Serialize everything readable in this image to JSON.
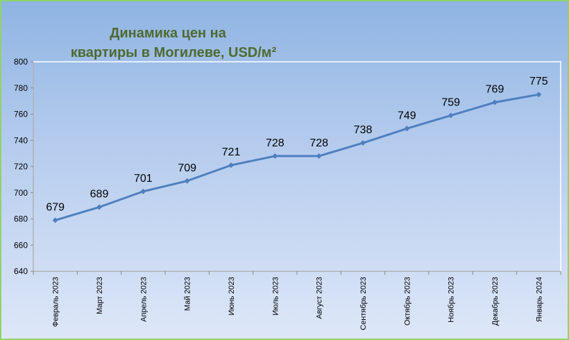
{
  "chart_data": {
    "type": "line",
    "title_lines": [
      "Динамика цен на",
      "квартиры в Могилеве, USD/м²"
    ],
    "categories": [
      "Февраль 2023",
      "Март 2023",
      "Апрель 2023",
      "Май 2023",
      "Июнь 2023",
      "Июль 2023",
      "Август 2023",
      "Сентябрь 2023",
      "Октябрь 2023",
      "Ноябрь 2023",
      "Декабрь 2023",
      "Январь 2024"
    ],
    "values": [
      679,
      689,
      701,
      709,
      721,
      728,
      728,
      738,
      749,
      759,
      769,
      775
    ],
    "ylim": [
      640,
      800
    ],
    "yticks": [
      640,
      660,
      680,
      700,
      720,
      740,
      760,
      780,
      800
    ],
    "grid": false,
    "legend": "none",
    "line_color": "#4f7fbf"
  }
}
